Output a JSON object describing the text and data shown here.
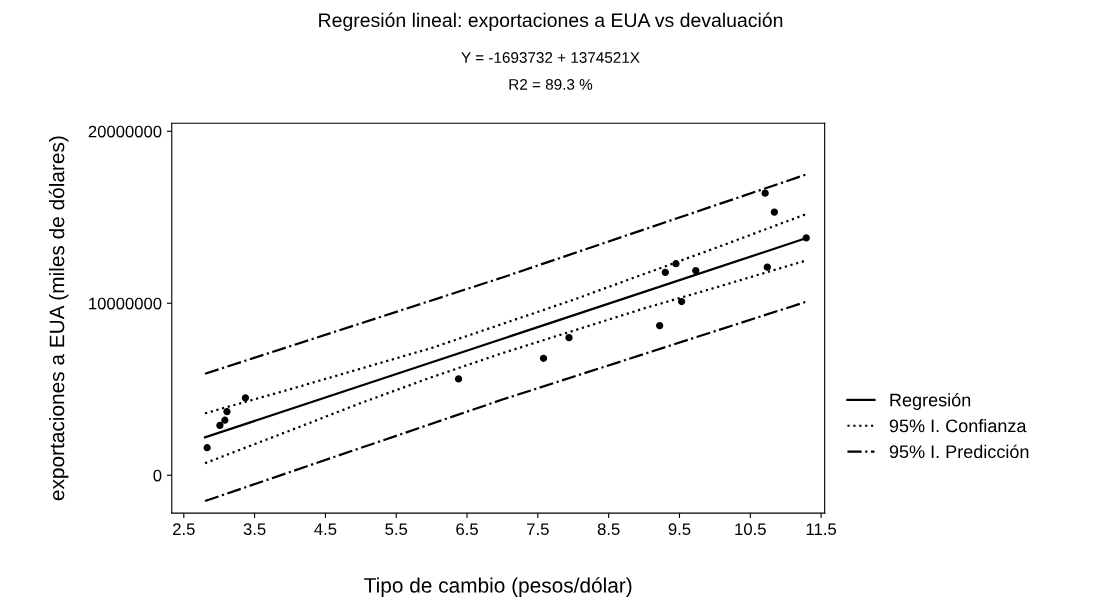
{
  "chart_data": {
    "type": "scatter",
    "title": "Regresión lineal: exportaciones a EUA vs devaluación",
    "subtitle": "Y = -1693732 + 1374521X",
    "annotations": [
      "R2 = 89.3 %"
    ],
    "xlabel": "Tipo de cambio (pesos/dólar)",
    "ylabel": "exportaciones a EUA (miles de dólares)",
    "x": [
      2.83,
      3.01,
      3.08,
      3.11,
      3.37,
      6.38,
      7.58,
      7.94,
      9.22,
      9.3,
      9.45,
      9.53,
      9.73,
      10.71,
      10.74,
      10.84,
      11.29
    ],
    "values": [
      1600000,
      2900000,
      3200000,
      3700000,
      4500000,
      5600000,
      6800000,
      8000000,
      8700000,
      11800000,
      12300000,
      10100000,
      11900000,
      16400000,
      12100000,
      15300000,
      13800000
    ],
    "color": "#000000",
    "marker": "circle",
    "series": [
      {
        "type": "line",
        "name": "Regresión",
        "color": "#000000",
        "marker": "none",
        "line_style": "solid",
        "x": [
          2.8,
          11.3
        ],
        "values": [
          2200000,
          13800000
        ]
      },
      {
        "type": "line",
        "name": "95% I. Confianza",
        "color": "#000000",
        "marker": "none",
        "line_style": "dotted",
        "x": [
          2.8,
          4,
          5,
          6,
          7,
          8,
          9,
          10,
          11.3
        ],
        "values": [
          3600000,
          5000000,
          6200000,
          7400000,
          8800000,
          10200000,
          11700000,
          13200000,
          15200000
        ]
      },
      {
        "type": "line",
        "color": "#000000",
        "marker": "none",
        "line_style": "dotted",
        "x": [
          2.8,
          4,
          5,
          6,
          7,
          8,
          9,
          10,
          11.3
        ],
        "values": [
          700000,
          2600000,
          4200000,
          5700000,
          7100000,
          8400000,
          9700000,
          10900000,
          12500000
        ]
      },
      {
        "type": "line",
        "name": "95% I. Predicción",
        "color": "#000000",
        "marker": "none",
        "line_style": "dashdot",
        "x": [
          2.8,
          7,
          11.3
        ],
        "values": [
          5900000,
          11500000,
          17500000
        ]
      },
      {
        "type": "line",
        "color": "#000000",
        "marker": "none",
        "line_style": "dashdot",
        "x": [
          2.8,
          7,
          11.3
        ],
        "values": [
          -1500000,
          4400000,
          10100000
        ]
      }
    ],
    "xlim": [
      2.33,
      11.55
    ],
    "ylim": [
      -2200000,
      20470000
    ],
    "xticks": [
      2.5,
      3.5,
      4.5,
      5.5,
      6.5,
      7.5,
      8.5,
      9.5,
      10.5,
      11.5
    ],
    "yticks": [
      0,
      10000000,
      20000000
    ],
    "grid": false,
    "legend": "right"
  }
}
